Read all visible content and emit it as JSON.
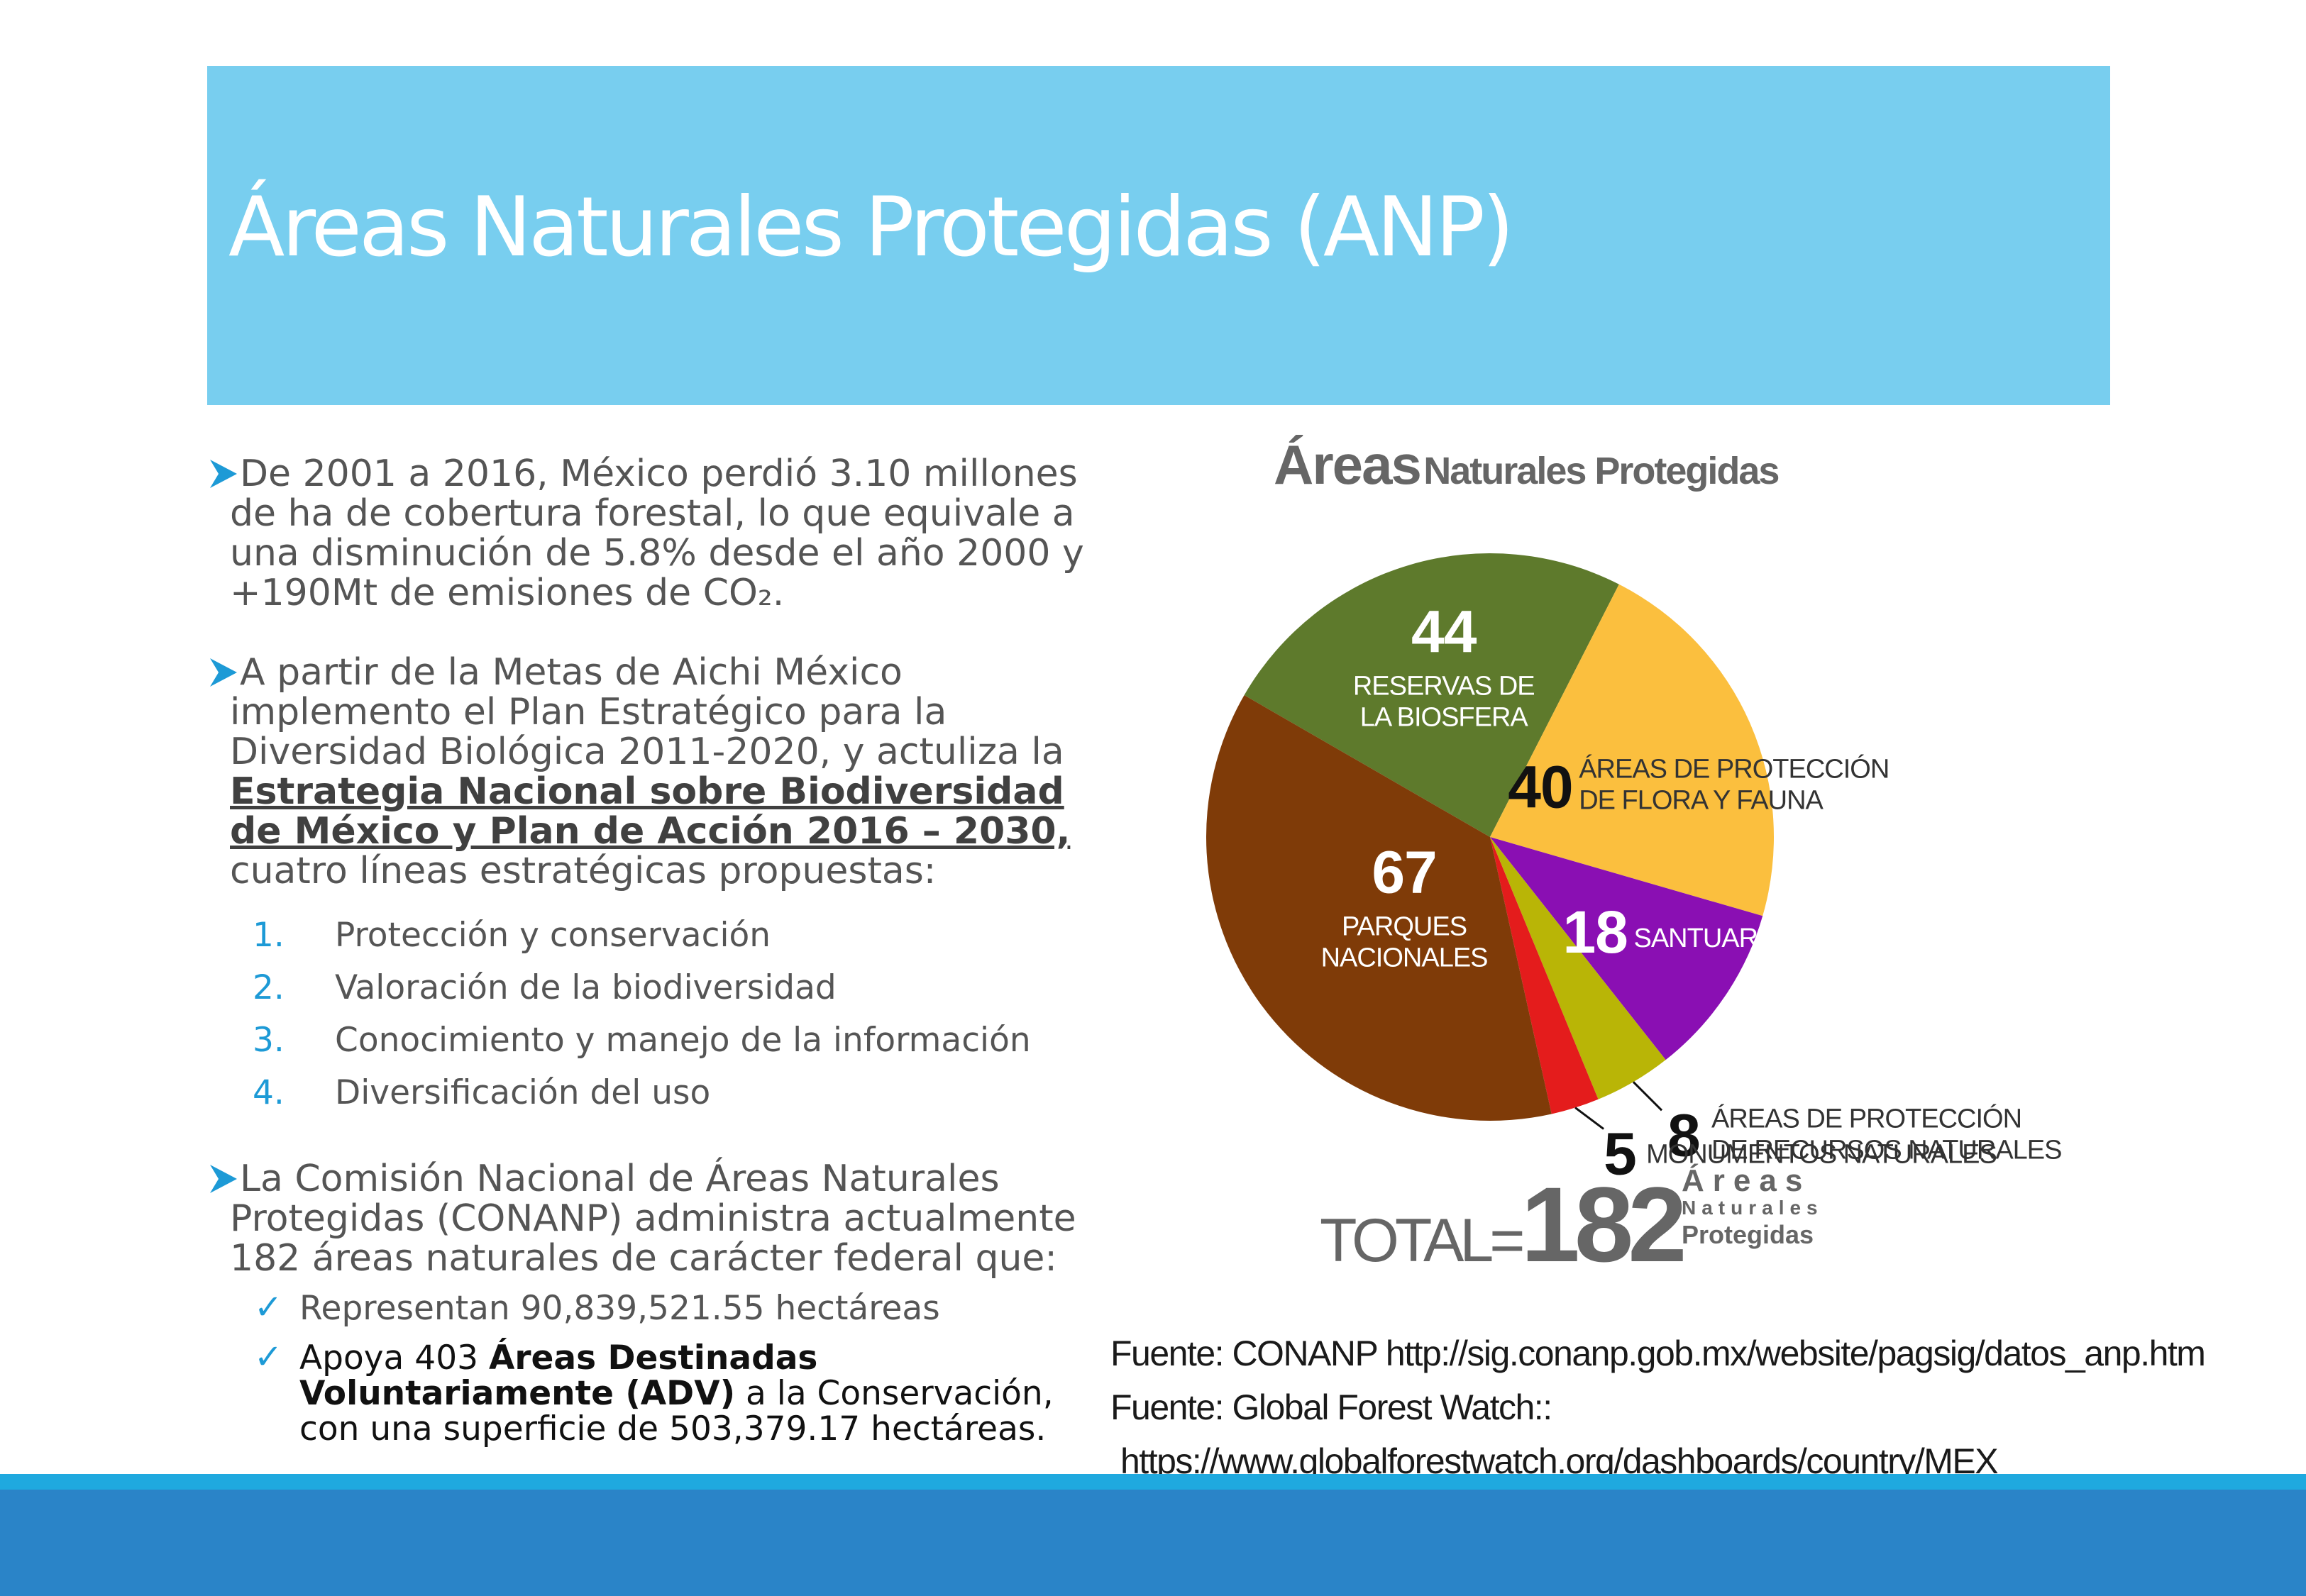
{
  "title": "Áreas Naturales Protegidas (ANP)",
  "colors": {
    "title_band": "#78ceef",
    "accent": "#1d9ad6",
    "footer": "#2a84c8"
  },
  "left": {
    "p1": "De 2001 a 2016, México perdió 3.10 millones de ha de cobertura forestal, lo que equivale a una disminución de 5.8% desde el año 2000 y +190Mt de emisiones de CO₂.",
    "p2_intro": "A partir de la Metas de Aichi México implemento el Plan Estratégico para la Diversidad Biológica 2011-2020, y actuliza la",
    "p2_link": "Estrategia Nacional sobre Biodiversidad de México y Plan de Acción 2016 – 2030,",
    "p2_tail": "cuatro líneas estratégicas propuestas:",
    "lines": [
      {
        "num": "1.",
        "text": "Protección y conservación"
      },
      {
        "num": "2.",
        "text": "Valoración de la biodiversidad"
      },
      {
        "num": "3.",
        "text": "Conocimiento y manejo de la información"
      },
      {
        "num": "4.",
        "text": "Diversificación del uso"
      }
    ],
    "p3": "La Comisión Nacional de Áreas Naturales Protegidas (CONANP) administra actualmente 182 áreas naturales de carácter federal que:",
    "check1": "Representan 90,839,521.55 hectáreas",
    "check2_a": "Apoya 403",
    "check2_b": "Áreas Destinadas Voluntariamente (ADV)",
    "check2_c": "a la Conservación, con una superficie de 503,379.17 hectáreas."
  },
  "chart_heading_big": "Áreas",
  "chart_heading_small": "Naturales Protegidas",
  "chart_data": {
    "type": "pie",
    "title": "Áreas Naturales Protegidas",
    "total": 182,
    "total_word": "TOTAL=",
    "total_sub": [
      "Áreas",
      "Naturales",
      "Protegidas"
    ],
    "slices": [
      {
        "value": 44,
        "label_1": "RESERVAS DE",
        "label_2": "LA BIOSFERA",
        "color": "#5e7a2c"
      },
      {
        "value": 40,
        "label_1": "ÁREAS DE PROTECCIÓN",
        "label_2": "DE FLORA Y FAUNA",
        "color": "#fbbf3e"
      },
      {
        "value": 18,
        "label_1": "SANTUARIOS",
        "label_2": "",
        "color": "#8a0fb3"
      },
      {
        "value": 8,
        "label_1": "ÁREAS DE PROTECCIÓN",
        "label_2": "DE RECURSOS NATURALES",
        "color": "#b9b506"
      },
      {
        "value": 5,
        "label_1": "MONUMENTOS NATURALES",
        "label_2": "",
        "color": "#e41c1c"
      },
      {
        "value": 67,
        "label_1": "PARQUES",
        "label_2": "NACIONALES",
        "color": "#7f3b08"
      }
    ]
  },
  "sources": {
    "line1": "Fuente: CONANP http://sig.conanp.gob.mx/website/pagsig/datos_anp.htm",
    "line2": "Fuente: Global Forest Watch::",
    "line3": "https://www.globalforestwatch.org/dashboards/country/MEX"
  }
}
